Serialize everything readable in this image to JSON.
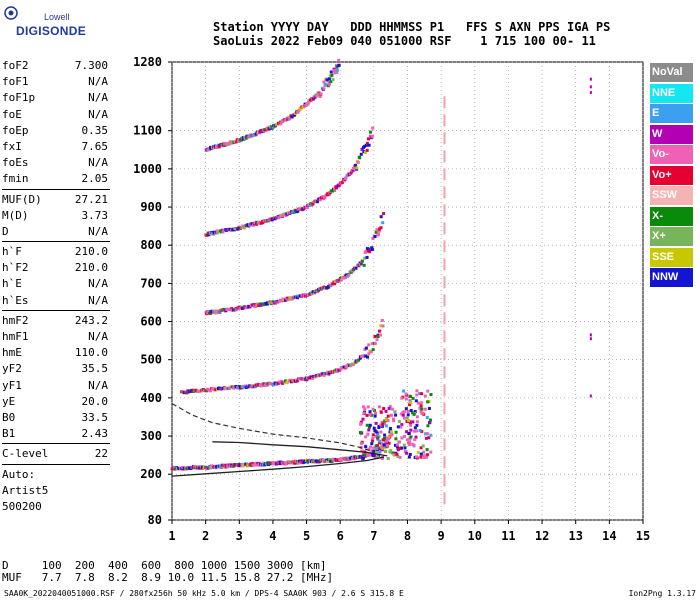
{
  "logo": {
    "line1": "Lowell",
    "line2": "DIGISONDE"
  },
  "header": {
    "line1": "Station YYYY DAY   DDD HHMMSS P1   FFS S AXN PPS IGA PS",
    "line2": "SaoLuis 2022 Feb09 040 051000 RSF    1 715 100 00- 11"
  },
  "params": [
    {
      "name": "foF2",
      "value": "7.300"
    },
    {
      "name": "foF1",
      "value": "N/A"
    },
    {
      "name": "foF1p",
      "value": "N/A"
    },
    {
      "name": "foE",
      "value": "N/A"
    },
    {
      "name": "foEp",
      "value": "0.35"
    },
    {
      "name": "fxI",
      "value": "7.65"
    },
    {
      "name": "foEs",
      "value": "N/A"
    },
    {
      "name": "fmin",
      "value": "2.05"
    },
    {
      "sep": true
    },
    {
      "name": "MUF(D)",
      "value": "27.21"
    },
    {
      "name": "M(D)",
      "value": "3.73"
    },
    {
      "name": "D",
      "value": "N/A"
    },
    {
      "sep": true
    },
    {
      "name": "h`F",
      "value": "210.0"
    },
    {
      "name": "h`F2",
      "value": "210.0"
    },
    {
      "name": "h`E",
      "value": "N/A"
    },
    {
      "name": "h`Es",
      "value": "N/A"
    },
    {
      "sep": true
    },
    {
      "name": "hmF2",
      "value": "243.2"
    },
    {
      "name": "hmF1",
      "value": "N/A"
    },
    {
      "name": "hmE",
      "value": "110.0"
    },
    {
      "name": "yF2",
      "value": "35.5"
    },
    {
      "name": "yF1",
      "value": "N/A"
    },
    {
      "name": "yE",
      "value": "20.0"
    },
    {
      "name": "B0",
      "value": "33.5"
    },
    {
      "name": "B1",
      "value": "2.43"
    },
    {
      "sep": true
    },
    {
      "name": "C-level",
      "value": "22"
    },
    {
      "sep": true
    },
    {
      "name": "Auto:",
      "value": ""
    },
    {
      "name": "Artist5",
      "value": ""
    },
    {
      "name": "500200",
      "value": ""
    }
  ],
  "legend": [
    {
      "label": "NoVal",
      "color": "#8c8c8c"
    },
    {
      "label": "NNE",
      "color": "#14e6f2"
    },
    {
      "label": "E",
      "color": "#3ca0f0"
    },
    {
      "label": "W",
      "color": "#b400b4"
    },
    {
      "label": "Vo-",
      "color": "#f060b4"
    },
    {
      "label": "Vo+",
      "color": "#e60032"
    },
    {
      "label": "SSW",
      "color": "#f4b4b4"
    },
    {
      "label": "X-",
      "color": "#0a8a0a"
    },
    {
      "label": "X+",
      "color": "#78b45a"
    },
    {
      "label": "SSE",
      "color": "#c8c800"
    },
    {
      "label": "NNW",
      "color": "#1414d2"
    }
  ],
  "chart_data": {
    "type": "scatter",
    "title": "",
    "xlabel": "",
    "ylabel": "",
    "xlim": [
      1,
      15
    ],
    "ylim": [
      80,
      1280
    ],
    "x_ticks": [
      1,
      2,
      3,
      4,
      5,
      6,
      7,
      8,
      9,
      10,
      11,
      12,
      13,
      14,
      15
    ],
    "y_ticks": [
      80,
      200,
      300,
      400,
      500,
      600,
      700,
      800,
      900,
      1000,
      1100,
      1280
    ],
    "grid": true,
    "marker_line_freq": 9.1,
    "fit_profile_upper": [
      [
        1.0,
        385
      ],
      [
        1.6,
        355
      ],
      [
        2.2,
        335
      ],
      [
        3.0,
        320
      ],
      [
        4.0,
        305
      ],
      [
        5.0,
        295
      ],
      [
        6.0,
        282
      ],
      [
        6.6,
        270
      ],
      [
        7.0,
        258
      ]
    ],
    "fit_trace_lower": [
      [
        1.0,
        195
      ],
      [
        2.0,
        201
      ],
      [
        3.0,
        207
      ],
      [
        4.0,
        213
      ],
      [
        5.0,
        220
      ],
      [
        6.0,
        228
      ],
      [
        6.8,
        236
      ],
      [
        7.3,
        245
      ]
    ],
    "fit_trace_mid": [
      [
        2.2,
        285
      ],
      [
        3.0,
        283
      ],
      [
        4.0,
        277
      ],
      [
        5.0,
        272
      ],
      [
        6.0,
        264
      ],
      [
        6.8,
        257
      ],
      [
        7.4,
        248
      ]
    ],
    "series": [
      {
        "name": "hop1",
        "x": [
          1.0,
          2.0,
          3.0,
          4.0,
          5.0,
          6.0,
          6.5,
          6.9,
          7.2,
          7.5
        ],
        "y": [
          215,
          218,
          224,
          228,
          233,
          238,
          244,
          252,
          265,
          295
        ]
      },
      {
        "name": "hop2",
        "x": [
          1.3,
          2.0,
          3.0,
          4.0,
          5.0,
          5.8,
          6.4,
          6.8,
          7.1,
          7.3
        ],
        "y": [
          415,
          420,
          428,
          437,
          450,
          468,
          490,
          520,
          555,
          600
        ]
      },
      {
        "name": "hop3",
        "x": [
          2.0,
          3.0,
          4.0,
          5.0,
          5.6,
          6.2,
          6.7,
          7.0,
          7.3
        ],
        "y": [
          622,
          635,
          650,
          670,
          690,
          720,
          760,
          810,
          880
        ]
      },
      {
        "name": "hop4",
        "x": [
          2.0,
          3.0,
          4.0,
          5.0,
          5.6,
          6.0,
          6.4,
          6.8,
          7.0
        ],
        "y": [
          828,
          845,
          868,
          900,
          930,
          960,
          1000,
          1060,
          1110
        ]
      },
      {
        "name": "hop5",
        "x": [
          2.0,
          3.0,
          4.0,
          4.6,
          5.0,
          5.4,
          5.8,
          6.0
        ],
        "y": [
          1050,
          1075,
          1110,
          1140,
          1170,
          1200,
          1250,
          1275
        ]
      }
    ]
  },
  "bottom": {
    "d_label": "D",
    "d_values": "100  200  400  600  800 1000 1500 3000 [km]",
    "muf_label": "MUF",
    "muf_values": "7.7  7.8  8.2  8.9 10.0 11.5 15.8 27.2 [MHz]"
  },
  "footer": {
    "left": "SAA0K_2022040051000.RSF / 280fx256h 50 kHz 5.0 km / DPS-4 SAA0K 903 / 2.6 S 315.8 E",
    "right": "Ion2Png 1.3.17"
  }
}
